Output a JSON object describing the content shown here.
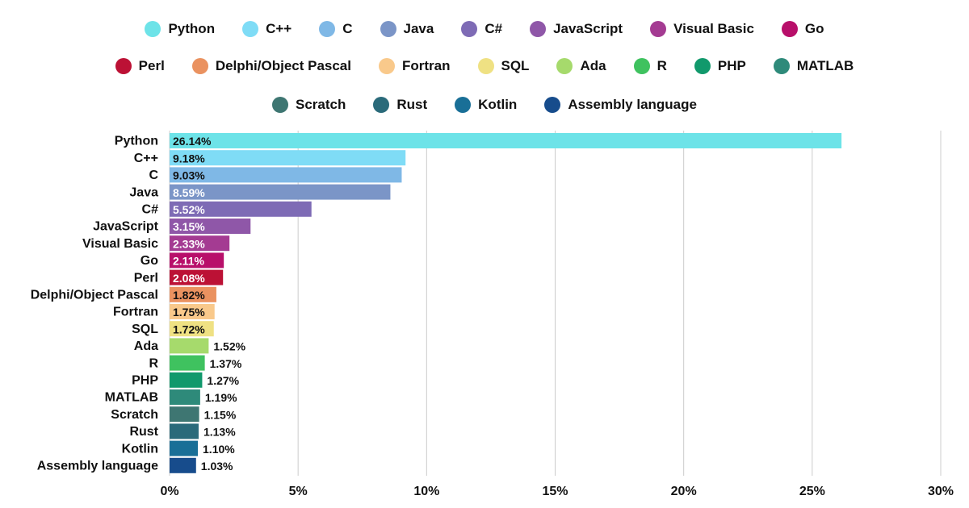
{
  "chart_data": {
    "type": "bar",
    "orientation": "horizontal",
    "categories": [
      "Python",
      "C++",
      "C",
      "Java",
      "C#",
      "JavaScript",
      "Visual Basic",
      "Go",
      "Perl",
      "Delphi/Object Pascal",
      "Fortran",
      "SQL",
      "Ada",
      "R",
      "PHP",
      "MATLAB",
      "Scratch",
      "Rust",
      "Kotlin",
      "Assembly language"
    ],
    "values": [
      26.14,
      9.18,
      9.03,
      8.59,
      5.52,
      3.15,
      2.33,
      2.11,
      2.08,
      1.82,
      1.75,
      1.72,
      1.52,
      1.37,
      1.27,
      1.19,
      1.15,
      1.13,
      1.1,
      1.03
    ],
    "value_labels": [
      "26.14%",
      "9.18%",
      "9.03%",
      "8.59%",
      "5.52%",
      "3.15%",
      "2.33%",
      "2.11%",
      "2.08%",
      "1.82%",
      "1.75%",
      "1.72%",
      "1.52%",
      "1.37%",
      "1.27%",
      "1.19%",
      "1.15%",
      "1.13%",
      "1.10%",
      "1.03%"
    ],
    "colors": [
      "#6de3e8",
      "#7fdcf6",
      "#7fb8e6",
      "#7b95c7",
      "#7e6bb5",
      "#8f57a8",
      "#a43b92",
      "#b80f6a",
      "#bc1135",
      "#ea9260",
      "#f9c98b",
      "#efe183",
      "#a6da6c",
      "#3fc25f",
      "#11996c",
      "#2e8a7a",
      "#3e7672",
      "#2a6a7a",
      "#196f97",
      "#174c8c"
    ],
    "xlim": [
      0,
      30
    ],
    "x_ticks": [
      0,
      5,
      10,
      15,
      20,
      25,
      30
    ],
    "x_tick_labels": [
      "0%",
      "5%",
      "10%",
      "15%",
      "20%",
      "25%",
      "30%"
    ],
    "grid": "vertical",
    "legend": {
      "placement": "top-center",
      "rows": [
        [
          "Python",
          "C++",
          "C",
          "Java",
          "C#",
          "JavaScript",
          "Visual Basic",
          "Go"
        ],
        [
          "Perl",
          "Delphi/Object Pascal",
          "Fortran",
          "SQL",
          "Ada",
          "R",
          "PHP",
          "MATLAB"
        ],
        [
          "Scratch",
          "Rust",
          "Kotlin",
          "Assembly language"
        ]
      ]
    }
  }
}
